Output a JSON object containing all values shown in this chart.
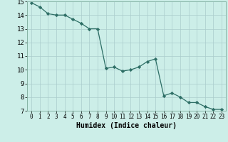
{
  "x": [
    0,
    1,
    2,
    3,
    4,
    5,
    6,
    7,
    8,
    9,
    10,
    11,
    12,
    13,
    14,
    15,
    16,
    17,
    18,
    19,
    20,
    21,
    22,
    23
  ],
  "y": [
    14.9,
    14.6,
    14.1,
    14.0,
    14.0,
    13.7,
    13.4,
    13.0,
    13.0,
    10.1,
    10.2,
    9.9,
    10.0,
    10.2,
    10.6,
    10.8,
    8.1,
    8.3,
    8.0,
    7.6,
    7.6,
    7.3,
    7.1,
    7.1
  ],
  "bg_color": "#cceee8",
  "grid_color": "#aacccc",
  "line_color": "#2d6e65",
  "marker_color": "#2d6e65",
  "xlabel": "Humidex (Indice chaleur)",
  "ylim": [
    7,
    15
  ],
  "xlim": [
    -0.5,
    23.5
  ],
  "yticks": [
    7,
    8,
    9,
    10,
    11,
    12,
    13,
    14,
    15
  ],
  "xticks": [
    0,
    1,
    2,
    3,
    4,
    5,
    6,
    7,
    8,
    9,
    10,
    11,
    12,
    13,
    14,
    15,
    16,
    17,
    18,
    19,
    20,
    21,
    22,
    23
  ],
  "xlabel_fontsize": 7,
  "tick_fontsize": 5.5,
  "ytick_fontsize": 6.5
}
